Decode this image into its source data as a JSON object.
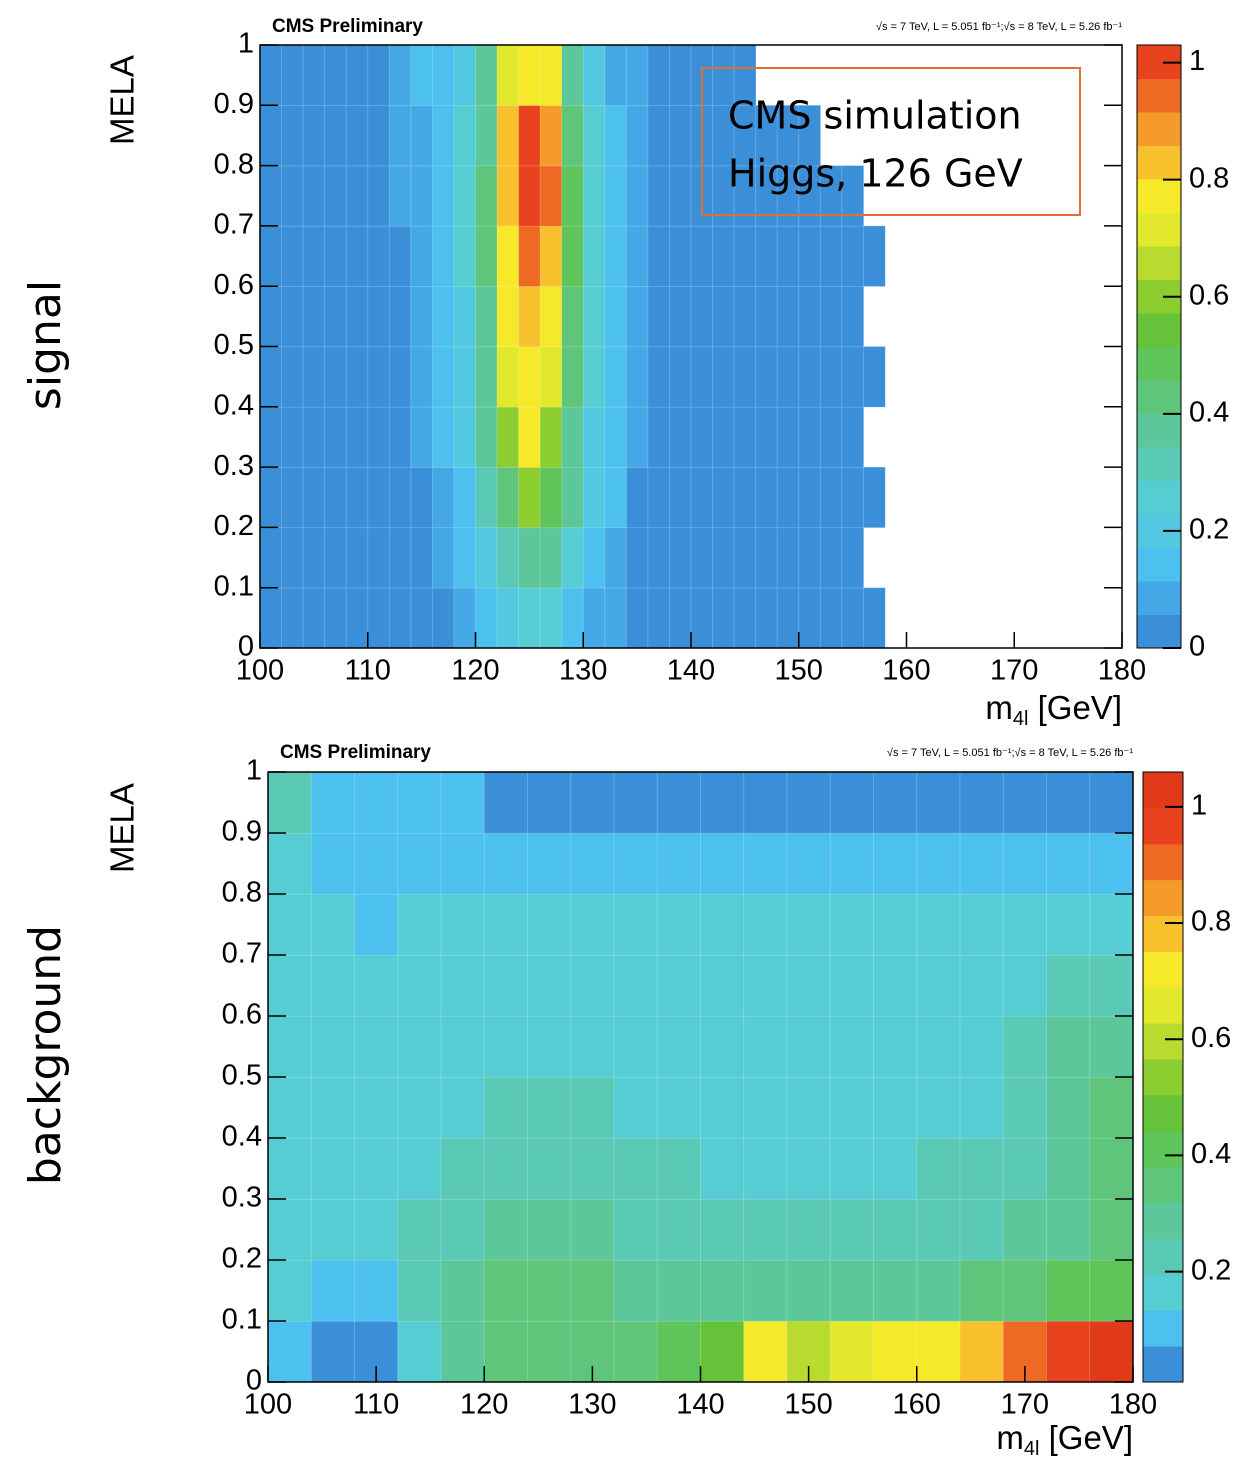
{
  "chart_data": [
    {
      "type": "heatmap",
      "title": "CMS Preliminary",
      "subtitle": "√s = 7 TeV, L = 5.051 fb⁻¹;√s = 8 TeV, L = 5.26 fb⁻¹",
      "side_label": "signal",
      "side_label_color": "#e8402a",
      "ylabel": "MELA",
      "xlabel": [
        "m",
        "4l",
        " [GeV]"
      ],
      "annotation": [
        "CMS simulation",
        "Higgs, 126 GeV"
      ],
      "xlim": [
        100,
        180
      ],
      "xticks": [
        100,
        110,
        120,
        130,
        140,
        150,
        160,
        170,
        180
      ],
      "ylim": [
        0,
        1
      ],
      "yticks": [
        0,
        0.1,
        0.2,
        0.3,
        0.4,
        0.5,
        0.6,
        0.7,
        0.8,
        0.9,
        1
      ],
      "zlim": [
        0,
        1.03
      ],
      "zticks": [
        0,
        0.2,
        0.4,
        0.6,
        0.8,
        1
      ],
      "colors": [
        "#3b8fd8",
        "#44a8e6",
        "#4cc0ef",
        "#52c9e0",
        "#56cdd2",
        "#5ac9b6",
        "#5cc79a",
        "#5fc57a",
        "#5fc45a",
        "#66c238",
        "#8ccd30",
        "#b9da2e",
        "#e2e82c",
        "#f5e92a",
        "#f8c02c",
        "#f49b2a",
        "#ee6a24",
        "#e8421e"
      ],
      "xbins": [
        100,
        102,
        104,
        106,
        108,
        110,
        112,
        114,
        116,
        118,
        120,
        122,
        124,
        126,
        128,
        130,
        132,
        134,
        136,
        138,
        140,
        142,
        144,
        146,
        148,
        150,
        152,
        154,
        156,
        158,
        160,
        162,
        164,
        166,
        168,
        170,
        172,
        174,
        176,
        178,
        180
      ],
      "ybins": [
        0,
        0.1,
        0.2,
        0.3,
        0.4,
        0.5,
        0.6,
        0.7,
        0.8,
        0.9,
        1
      ],
      "values": [
        [
          0.03,
          0.03,
          0.03,
          0.03,
          0.03,
          0.03,
          0.03,
          0.03,
          0.03,
          0.03
        ],
        [
          0.03,
          0.03,
          0.03,
          0.03,
          0.03,
          0.03,
          0.03,
          0.03,
          0.03,
          0.03
        ],
        [
          0.03,
          0.03,
          0.03,
          0.03,
          0.03,
          0.03,
          0.03,
          0.03,
          0.03,
          0.03
        ],
        [
          0.03,
          0.03,
          0.03,
          0.03,
          0.03,
          0.03,
          0.03,
          0.03,
          0.03,
          0.03
        ],
        [
          0.03,
          0.03,
          0.03,
          0.03,
          0.03,
          0.03,
          0.03,
          0.03,
          0.03,
          0.03
        ],
        [
          0.03,
          0.03,
          0.03,
          0.03,
          0.03,
          0.03,
          0.03,
          0.03,
          0.03,
          0.03
        ],
        [
          0.03,
          0.03,
          0.03,
          0.03,
          0.03,
          0.03,
          0.03,
          0.08,
          0.08,
          0.08
        ],
        [
          0.03,
          0.03,
          0.03,
          0.08,
          0.08,
          0.08,
          0.08,
          0.08,
          0.08,
          0.12
        ],
        [
          0.03,
          0.08,
          0.08,
          0.12,
          0.12,
          0.12,
          0.15,
          0.15,
          0.15,
          0.15
        ],
        [
          0.08,
          0.12,
          0.15,
          0.2,
          0.2,
          0.2,
          0.25,
          0.25,
          0.25,
          0.2
        ],
        [
          0.12,
          0.2,
          0.3,
          0.35,
          0.4,
          0.4,
          0.45,
          0.45,
          0.4,
          0.35
        ],
        [
          0.2,
          0.3,
          0.45,
          0.6,
          0.7,
          0.75,
          0.8,
          0.85,
          0.85,
          0.7
        ],
        [
          0.25,
          0.4,
          0.6,
          0.75,
          0.8,
          0.85,
          0.95,
          1.0,
          0.98,
          0.8
        ],
        [
          0.25,
          0.35,
          0.5,
          0.6,
          0.7,
          0.75,
          0.85,
          0.95,
          0.9,
          0.75
        ],
        [
          0.15,
          0.25,
          0.35,
          0.4,
          0.45,
          0.45,
          0.5,
          0.5,
          0.45,
          0.35
        ],
        [
          0.1,
          0.15,
          0.2,
          0.2,
          0.25,
          0.25,
          0.25,
          0.25,
          0.25,
          0.2
        ],
        [
          0.08,
          0.1,
          0.12,
          0.12,
          0.12,
          0.15,
          0.12,
          0.12,
          0.12,
          0.1
        ],
        [
          0.03,
          0.05,
          0.05,
          0.08,
          0.08,
          0.08,
          0.08,
          0.08,
          0.08,
          0.08
        ],
        [
          0.03,
          0.03,
          0.03,
          0.03,
          0.03,
          0.03,
          0.03,
          0.03,
          0.03,
          0.03
        ],
        [
          0.03,
          0.03,
          0.03,
          0.03,
          0.03,
          0.03,
          0.03,
          0.03,
          0.03,
          0.03
        ],
        [
          0.03,
          0.03,
          0.03,
          0.03,
          0.03,
          0.03,
          0.03,
          0.03,
          0.03,
          0.03
        ],
        [
          0.03,
          0.03,
          0.03,
          0.03,
          0.03,
          0.03,
          0.03,
          0.03,
          0.03,
          0.03
        ],
        [
          0.03,
          0.03,
          0.03,
          0.03,
          0.03,
          0.03,
          0.03,
          0.03,
          0.03,
          0.03
        ],
        [
          0.03,
          0.03,
          0.03,
          0.03,
          0.03,
          0.03,
          0.03,
          0.03,
          0.03,
          null
        ],
        [
          0.03,
          0.03,
          0.03,
          0.03,
          0.03,
          0.03,
          0.03,
          0.03,
          0.03,
          null
        ],
        [
          0.03,
          0.03,
          0.03,
          0.03,
          0.03,
          0.03,
          0.03,
          0.03,
          0.03,
          null
        ],
        [
          0.03,
          0.03,
          0.03,
          0.03,
          0.03,
          0.03,
          0.03,
          0.03,
          null,
          null
        ],
        [
          0.03,
          0.03,
          0.03,
          0.03,
          0.03,
          0.03,
          0.03,
          0.03,
          null,
          null
        ],
        [
          0.03,
          null,
          0.03,
          null,
          0.03,
          null,
          0.03,
          null,
          null,
          null
        ],
        [
          null,
          null,
          null,
          null,
          null,
          null,
          null,
          null,
          null,
          null
        ],
        [
          null,
          null,
          null,
          null,
          null,
          null,
          null,
          null,
          null,
          null
        ],
        [
          null,
          null,
          null,
          null,
          null,
          null,
          null,
          null,
          null,
          null
        ],
        [
          null,
          null,
          null,
          null,
          null,
          null,
          null,
          null,
          null,
          null
        ],
        [
          null,
          null,
          null,
          null,
          null,
          null,
          null,
          null,
          null,
          null
        ],
        [
          null,
          null,
          null,
          null,
          null,
          null,
          null,
          null,
          null,
          null
        ],
        [
          null,
          null,
          null,
          null,
          null,
          null,
          null,
          null,
          null,
          null
        ],
        [
          null,
          null,
          null,
          null,
          null,
          null,
          null,
          null,
          null,
          null
        ],
        [
          null,
          null,
          null,
          null,
          null,
          null,
          null,
          null,
          null,
          null
        ],
        [
          null,
          null,
          null,
          null,
          null,
          null,
          null,
          null,
          null,
          null
        ],
        [
          null,
          null,
          null,
          null,
          null,
          null,
          null,
          null,
          null,
          null
        ]
      ]
    },
    {
      "type": "heatmap",
      "title": "CMS Preliminary",
      "subtitle": "√s = 7 TeV, L = 5.051 fb⁻¹;√s = 8 TeV, L = 5.26 fb⁻¹",
      "side_label": "background",
      "side_label_color": "#4a55c8",
      "ylabel": "MELA",
      "xlabel": [
        "m",
        "4l",
        " [GeV]"
      ],
      "xlim": [
        100,
        180
      ],
      "xticks": [
        100,
        110,
        120,
        130,
        140,
        150,
        160,
        170,
        180
      ],
      "ylim": [
        0,
        1
      ],
      "yticks": [
        0,
        0.1,
        0.2,
        0.3,
        0.4,
        0.5,
        0.6,
        0.7,
        0.8,
        0.9,
        1
      ],
      "zlim": [
        0.01,
        1.06
      ],
      "zticks": [
        0.2,
        0.4,
        0.6,
        0.8,
        1
      ],
      "colors": [
        "#3b8fd8",
        "#4cc0ef",
        "#56cdd2",
        "#5ac9b6",
        "#5cc79a",
        "#5fc57a",
        "#5fc45a",
        "#66c238",
        "#8ccd30",
        "#b9da2e",
        "#e2e82c",
        "#f5e92a",
        "#f8c02c",
        "#f49b2a",
        "#ee6a24",
        "#e8421e",
        "#e03a1a"
      ],
      "xbins": [
        100,
        104,
        108,
        112,
        116,
        120,
        124,
        128,
        132,
        136,
        140,
        144,
        148,
        152,
        156,
        160,
        164,
        168,
        172,
        176,
        180
      ],
      "ybins": [
        0,
        0.1,
        0.2,
        0.3,
        0.4,
        0.5,
        0.6,
        0.7,
        0.8,
        0.9,
        1
      ],
      "values": [
        [
          0.1,
          0.15,
          0.15,
          0.15,
          0.15,
          0.15,
          0.15,
          0.15,
          0.15,
          0.2
        ],
        [
          0.05,
          0.12,
          0.15,
          0.15,
          0.15,
          0.15,
          0.15,
          0.15,
          0.1,
          0.12
        ],
        [
          0.05,
          0.12,
          0.15,
          0.15,
          0.15,
          0.15,
          0.15,
          0.12,
          0.1,
          0.1
        ],
        [
          0.15,
          0.2,
          0.2,
          0.15,
          0.15,
          0.15,
          0.15,
          0.15,
          0.12,
          0.1
        ],
        [
          0.28,
          0.28,
          0.22,
          0.2,
          0.15,
          0.15,
          0.15,
          0.15,
          0.12,
          0.1
        ],
        [
          0.35,
          0.35,
          0.3,
          0.25,
          0.2,
          0.15,
          0.15,
          0.15,
          0.12,
          0.05
        ],
        [
          0.38,
          0.35,
          0.3,
          0.25,
          0.2,
          0.15,
          0.15,
          0.15,
          0.12,
          0.05
        ],
        [
          0.38,
          0.32,
          0.28,
          0.22,
          0.2,
          0.15,
          0.15,
          0.15,
          0.12,
          0.05
        ],
        [
          0.38,
          0.3,
          0.25,
          0.2,
          0.15,
          0.15,
          0.15,
          0.15,
          0.12,
          0.05
        ],
        [
          0.4,
          0.3,
          0.22,
          0.2,
          0.15,
          0.15,
          0.15,
          0.15,
          0.1,
          0.05
        ],
        [
          0.5,
          0.3,
          0.2,
          0.15,
          0.15,
          0.15,
          0.15,
          0.15,
          0.1,
          0.05
        ],
        [
          0.7,
          0.3,
          0.2,
          0.15,
          0.15,
          0.15,
          0.15,
          0.15,
          0.12,
          0.05
        ],
        [
          0.6,
          0.3,
          0.2,
          0.15,
          0.15,
          0.15,
          0.15,
          0.15,
          0.12,
          0.05
        ],
        [
          0.65,
          0.3,
          0.2,
          0.15,
          0.15,
          0.15,
          0.15,
          0.15,
          0.12,
          0.05
        ],
        [
          0.7,
          0.3,
          0.22,
          0.15,
          0.15,
          0.15,
          0.15,
          0.15,
          0.12,
          0.05
        ],
        [
          0.75,
          0.3,
          0.22,
          0.2,
          0.15,
          0.15,
          0.15,
          0.15,
          0.12,
          0.05
        ],
        [
          0.8,
          0.32,
          0.25,
          0.2,
          0.15,
          0.15,
          0.15,
          0.15,
          0.1,
          0.05
        ],
        [
          0.9,
          0.35,
          0.28,
          0.22,
          0.2,
          0.2,
          0.15,
          0.15,
          0.1,
          0.05
        ],
        [
          0.95,
          0.4,
          0.3,
          0.28,
          0.3,
          0.3,
          0.2,
          0.15,
          0.1,
          0.05
        ],
        [
          1.0,
          0.4,
          0.35,
          0.35,
          0.35,
          0.3,
          0.2,
          0.15,
          0.1,
          0.05
        ]
      ]
    }
  ]
}
